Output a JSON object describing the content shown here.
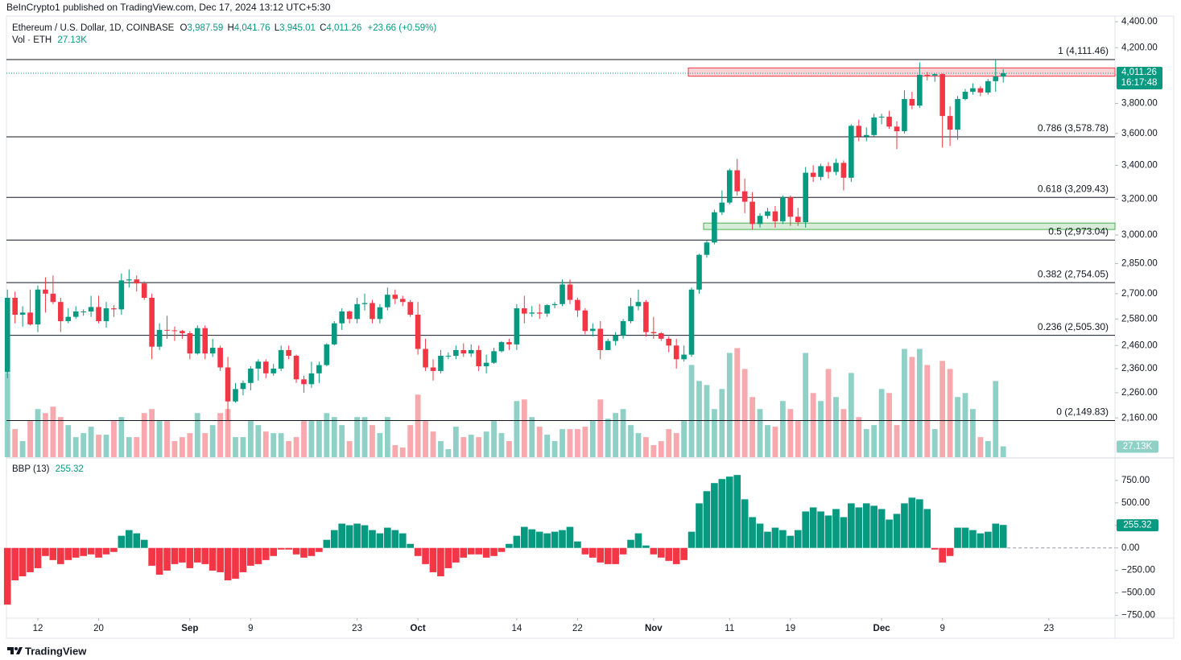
{
  "header": "BeInCrypto1 published on TradingView.com, Dec 17, 2024 13:12 UTC+5:30",
  "footer": "TradingView",
  "chart_data": {
    "type": "candlestick",
    "legend": {
      "title": "Ethereum / U.S. Dollar, 1D, COINBASE",
      "fields": [
        [
          "O",
          "3,987.59"
        ],
        [
          "H",
          "4,041.76"
        ],
        [
          "L",
          "3,945.01"
        ],
        [
          "C",
          "4,011.26"
        ]
      ],
      "change": "+23.66 (+0.59%)"
    },
    "up_color": "#089981",
    "down_color": "#f23645",
    "log_scale": true,
    "ylim": [
      2013,
      4445
    ],
    "yticks": [
      {
        "value": 4400,
        "label": "4,400.00"
      },
      {
        "value": 4200,
        "label": "4,200.00"
      },
      {
        "value": 4000,
        "label": "4,000.00"
      },
      {
        "value": 3800,
        "label": "3,800.00"
      },
      {
        "value": 3600,
        "label": "3,600.00"
      },
      {
        "value": 3400,
        "label": "3,400.00"
      },
      {
        "value": 3200,
        "label": "3,200.00"
      },
      {
        "value": 3000,
        "label": "3,000.00"
      },
      {
        "value": 2850,
        "label": "2,850.00"
      },
      {
        "value": 2700,
        "label": "2,700.00"
      },
      {
        "value": 2580,
        "label": "2,580.00"
      },
      {
        "value": 2460,
        "label": "2,460.00"
      },
      {
        "value": 2360,
        "label": "2,360.00"
      },
      {
        "value": 2260,
        "label": "2,260.00"
      },
      {
        "value": 2160,
        "label": "2,160.00"
      }
    ],
    "xlim": [
      -0.13,
      145.7
    ],
    "xticks": [
      {
        "value": 4,
        "label": "12"
      },
      {
        "value": 12,
        "label": "20"
      },
      {
        "value": 24,
        "label": "Sep"
      },
      {
        "value": 32,
        "label": "9"
      },
      {
        "value": 46,
        "label": "23"
      },
      {
        "value": 54,
        "label": "Oct"
      },
      {
        "value": 67,
        "label": "14"
      },
      {
        "value": 75,
        "label": "22"
      },
      {
        "value": 85,
        "label": "Nov"
      },
      {
        "value": 95,
        "label": "11"
      },
      {
        "value": 103,
        "label": "19"
      },
      {
        "value": 115,
        "label": "Dec"
      },
      {
        "value": 123,
        "label": "9"
      },
      {
        "value": 137,
        "label": "23"
      }
    ],
    "candles": [
      [
        2345,
        2720,
        2320,
        2680
      ],
      [
        2680,
        2710,
        2560,
        2600
      ],
      [
        2600,
        2640,
        2545,
        2610
      ],
      [
        2610,
        2720,
        2550,
        2555
      ],
      [
        2555,
        2740,
        2520,
        2720
      ],
      [
        2720,
        2780,
        2610,
        2700
      ],
      [
        2700,
        2790,
        2650,
        2660
      ],
      [
        2660,
        2680,
        2520,
        2570
      ],
      [
        2570,
        2630,
        2560,
        2590
      ],
      [
        2590,
        2640,
        2580,
        2615
      ],
      [
        2615,
        2625,
        2595,
        2615
      ],
      [
        2615,
        2690,
        2590,
        2636
      ],
      [
        2636,
        2690,
        2560,
        2570
      ],
      [
        2570,
        2660,
        2540,
        2630
      ],
      [
        2630,
        2645,
        2590,
        2625
      ],
      [
        2625,
        2800,
        2600,
        2765
      ],
      [
        2765,
        2820,
        2730,
        2770
      ],
      [
        2770,
        2790,
        2710,
        2750
      ],
      [
        2750,
        2760,
        2670,
        2680
      ],
      [
        2680,
        2700,
        2400,
        2455
      ],
      [
        2455,
        2560,
        2440,
        2530
      ],
      [
        2530,
        2595,
        2490,
        2528
      ],
      [
        2528,
        2545,
        2480,
        2525
      ],
      [
        2525,
        2530,
        2490,
        2515
      ],
      [
        2515,
        2525,
        2400,
        2425
      ],
      [
        2425,
        2550,
        2420,
        2538
      ],
      [
        2538,
        2550,
        2400,
        2425
      ],
      [
        2425,
        2490,
        2410,
        2450
      ],
      [
        2450,
        2460,
        2350,
        2365
      ],
      [
        2365,
        2410,
        2150,
        2225
      ],
      [
        2225,
        2300,
        2220,
        2275
      ],
      [
        2275,
        2310,
        2250,
        2300
      ],
      [
        2300,
        2370,
        2270,
        2360
      ],
      [
        2360,
        2400,
        2310,
        2390
      ],
      [
        2390,
        2400,
        2320,
        2340
      ],
      [
        2340,
        2380,
        2330,
        2360
      ],
      [
        2360,
        2460,
        2350,
        2440
      ],
      [
        2440,
        2460,
        2400,
        2415
      ],
      [
        2415,
        2420,
        2300,
        2315
      ],
      [
        2315,
        2330,
        2260,
        2295
      ],
      [
        2295,
        2390,
        2280,
        2340
      ],
      [
        2340,
        2390,
        2300,
        2375
      ],
      [
        2375,
        2470,
        2370,
        2465
      ],
      [
        2465,
        2570,
        2460,
        2560
      ],
      [
        2560,
        2630,
        2530,
        2615
      ],
      [
        2615,
        2620,
        2560,
        2580
      ],
      [
        2580,
        2680,
        2560,
        2650
      ],
      [
        2650,
        2700,
        2620,
        2655
      ],
      [
        2655,
        2670,
        2560,
        2580
      ],
      [
        2580,
        2650,
        2560,
        2635
      ],
      [
        2635,
        2730,
        2620,
        2695
      ],
      [
        2695,
        2720,
        2650,
        2675
      ],
      [
        2675,
        2690,
        2640,
        2660
      ],
      [
        2660,
        2670,
        2590,
        2600
      ],
      [
        2600,
        2660,
        2420,
        2445
      ],
      [
        2445,
        2490,
        2350,
        2365
      ],
      [
        2365,
        2400,
        2310,
        2350
      ],
      [
        2350,
        2440,
        2340,
        2415
      ],
      [
        2415,
        2430,
        2400,
        2415
      ],
      [
        2415,
        2460,
        2400,
        2440
      ],
      [
        2440,
        2470,
        2410,
        2425
      ],
      [
        2425,
        2465,
        2410,
        2440
      ],
      [
        2440,
        2460,
        2350,
        2370
      ],
      [
        2370,
        2420,
        2340,
        2385
      ],
      [
        2385,
        2450,
        2380,
        2435
      ],
      [
        2435,
        2480,
        2430,
        2475
      ],
      [
        2475,
        2490,
        2440,
        2465
      ],
      [
        2465,
        2650,
        2440,
        2630
      ],
      [
        2630,
        2690,
        2560,
        2605
      ],
      [
        2605,
        2640,
        2590,
        2610
      ],
      [
        2610,
        2650,
        2580,
        2605
      ],
      [
        2605,
        2650,
        2590,
        2645
      ],
      [
        2645,
        2660,
        2630,
        2650
      ],
      [
        2650,
        2770,
        2640,
        2745
      ],
      [
        2745,
        2770,
        2650,
        2670
      ],
      [
        2670,
        2680,
        2590,
        2620
      ],
      [
        2620,
        2630,
        2510,
        2525
      ],
      [
        2525,
        2560,
        2500,
        2535
      ],
      [
        2535,
        2570,
        2400,
        2440
      ],
      [
        2440,
        2490,
        2440,
        2480
      ],
      [
        2480,
        2520,
        2460,
        2505
      ],
      [
        2505,
        2580,
        2490,
        2570
      ],
      [
        2570,
        2680,
        2560,
        2640
      ],
      [
        2640,
        2720,
        2620,
        2660
      ],
      [
        2660,
        2670,
        2500,
        2520
      ],
      [
        2520,
        2590,
        2490,
        2515
      ],
      [
        2515,
        2520,
        2480,
        2490
      ],
      [
        2490,
        2500,
        2430,
        2460
      ],
      [
        2460,
        2490,
        2360,
        2400
      ],
      [
        2400,
        2460,
        2390,
        2420
      ],
      [
        2420,
        2730,
        2410,
        2720
      ],
      [
        2720,
        2900,
        2700,
        2895
      ],
      [
        2895,
        2970,
        2880,
        2960
      ],
      [
        2960,
        3140,
        2950,
        3125
      ],
      [
        3125,
        3250,
        3110,
        3180
      ],
      [
        3180,
        3380,
        3170,
        3370
      ],
      [
        3370,
        3440,
        3220,
        3245
      ],
      [
        3245,
        3320,
        3120,
        3185
      ],
      [
        3185,
        3240,
        3030,
        3060
      ],
      [
        3060,
        3120,
        3040,
        3105
      ],
      [
        3105,
        3150,
        3090,
        3130
      ],
      [
        3130,
        3160,
        3040,
        3075
      ],
      [
        3075,
        3220,
        3060,
        3210
      ],
      [
        3210,
        3220,
        3050,
        3100
      ],
      [
        3100,
        3150,
        3050,
        3070
      ],
      [
        3070,
        3390,
        3040,
        3355
      ],
      [
        3355,
        3400,
        3300,
        3330
      ],
      [
        3330,
        3410,
        3310,
        3395
      ],
      [
        3395,
        3420,
        3320,
        3360
      ],
      [
        3360,
        3440,
        3340,
        3415
      ],
      [
        3415,
        3430,
        3250,
        3325
      ],
      [
        3325,
        3660,
        3300,
        3650
      ],
      [
        3650,
        3690,
        3550,
        3580
      ],
      [
        3580,
        3640,
        3550,
        3590
      ],
      [
        3590,
        3730,
        3580,
        3705
      ],
      [
        3705,
        3730,
        3660,
        3710
      ],
      [
        3710,
        3750,
        3630,
        3645
      ],
      [
        3645,
        3680,
        3500,
        3615
      ],
      [
        3615,
        3890,
        3600,
        3830
      ],
      [
        3830,
        3880,
        3760,
        3785
      ],
      [
        3785,
        4090,
        3770,
        4000
      ],
      [
        4000,
        4020,
        3960,
        3995
      ],
      [
        3995,
        4010,
        3950,
        4005
      ],
      [
        4005,
        4010,
        3510,
        3715
      ],
      [
        3715,
        3780,
        3520,
        3625
      ],
      [
        3625,
        3850,
        3560,
        3830
      ],
      [
        3830,
        3900,
        3820,
        3880
      ],
      [
        3880,
        3940,
        3860,
        3905
      ],
      [
        3905,
        3920,
        3850,
        3875
      ],
      [
        3875,
        3970,
        3860,
        3955
      ],
      [
        3955,
        4110,
        3880,
        3987.59
      ],
      [
        3987.59,
        4041.76,
        3945.01,
        4011.26
      ]
    ],
    "last_price_label": "4,011.26",
    "countdown": "16:17:48",
    "fib_color": "#131722",
    "fib_levels": [
      {
        "label": "1 (4,111.46)",
        "value": 4111.46
      },
      {
        "label": "0.786 (3,578.78)",
        "value": 3578.78
      },
      {
        "label": "0.618 (3,209.43)",
        "value": 3209.43
      },
      {
        "label": "0.5 (2,973.04)",
        "value": 2973.04
      },
      {
        "label": "0.382 (2,754.05)",
        "value": 2754.05
      },
      {
        "label": "0.236 (2,505.30)",
        "value": 2505.3
      },
      {
        "label": "0 (2,149.83)",
        "value": 2149.83
      }
    ],
    "zones": [
      {
        "low": 3990,
        "high": 4050,
        "start": 90,
        "color": "#f23645"
      },
      {
        "low": 3030,
        "high": 3065,
        "start": 92,
        "color": "#4caf50"
      }
    ],
    "volume": {
      "name": "Vol · ETH",
      "last_label": "27.13K",
      "ylim": [
        0,
        1100000
      ],
      "up_color": "#8fd1c6",
      "down_color": "#f7a9ae",
      "values": [
        210000,
        70000,
        40000,
        90000,
        120000,
        110000,
        126000,
        100000,
        80000,
        50000,
        60000,
        76000,
        56000,
        56000,
        90000,
        100000,
        50000,
        50000,
        110000,
        120000,
        90000,
        90000,
        40000,
        50000,
        60000,
        110000,
        60000,
        80000,
        110000,
        120000,
        50000,
        50000,
        90000,
        80000,
        64000,
        60000,
        60000,
        40000,
        50000,
        90000,
        90000,
        90000,
        110000,
        100000,
        80000,
        40000,
        100000,
        100000,
        80000,
        60000,
        100000,
        30000,
        24000,
        80000,
        156000,
        90000,
        64000,
        40000,
        20000,
        76000,
        50000,
        56000,
        50000,
        64000,
        90000,
        60000,
        40000,
        140000,
        144000,
        100000,
        76000,
        56000,
        40000,
        70000,
        70000,
        70000,
        76000,
        90000,
        144000,
        96000,
        110000,
        120000,
        80000,
        60000,
        50000,
        30000,
        40000,
        70000,
        60000,
        90000,
        230000,
        190000,
        180000,
        120000,
        170000,
        260000,
        272000,
        220000,
        150000,
        120000,
        80000,
        76000,
        140000,
        120000,
        90000,
        260000,
        160000,
        140000,
        220000,
        150000,
        120000,
        210000,
        100000,
        70000,
        80000,
        170000,
        160000,
        80000,
        270000,
        250000,
        270000,
        230000,
        70000,
        240000,
        220000,
        150000,
        160000,
        120000,
        50000,
        40000,
        190000,
        27130
      ]
    },
    "bbp": {
      "name": "BBP (13)",
      "ylim": [
        -780,
        990
      ],
      "yticks": [
        {
          "value": 750,
          "label": "750.00"
        },
        {
          "value": 500,
          "label": "500.00"
        },
        {
          "value": 250,
          "label": "250.00"
        },
        {
          "value": 0,
          "label": "0.00"
        },
        {
          "value": -250,
          "label": "−250.00"
        },
        {
          "value": -500,
          "label": "−500.00"
        },
        {
          "value": -750,
          "label": "−750.00"
        }
      ],
      "values": [
        -630,
        -360,
        -315,
        -270,
        -225,
        -90,
        -135,
        -180,
        -135,
        -108,
        -90,
        -72,
        -108,
        -72,
        -45,
        135,
        198,
        162,
        90,
        -198,
        -297,
        -252,
        -180,
        -162,
        -225,
        -162,
        -180,
        -252,
        -270,
        -360,
        -342,
        -270,
        -198,
        -180,
        -135,
        -90,
        -18,
        -18,
        -72,
        -108,
        -90,
        -45,
        90,
        198,
        270,
        252,
        270,
        252,
        198,
        162,
        225,
        198,
        162,
        45,
        -90,
        -180,
        -270,
        -315,
        -225,
        -162,
        -108,
        -72,
        -72,
        -108,
        -90,
        -45,
        45,
        135,
        234,
        207,
        180,
        162,
        180,
        198,
        234,
        72,
        -72,
        -108,
        -162,
        -180,
        -180,
        -72,
        90,
        162,
        27,
        -72,
        -108,
        -144,
        -180,
        -135,
        180,
        495,
        630,
        720,
        765,
        792,
        810,
        540,
        342,
        270,
        180,
        225,
        198,
        135,
        198,
        405,
        450,
        405,
        360,
        432,
        342,
        495,
        450,
        495,
        468,
        432,
        315,
        378,
        495,
        558,
        540,
        432,
        -18,
        -162,
        -90,
        225,
        225,
        198,
        162,
        180,
        270,
        255.32
      ]
    }
  }
}
